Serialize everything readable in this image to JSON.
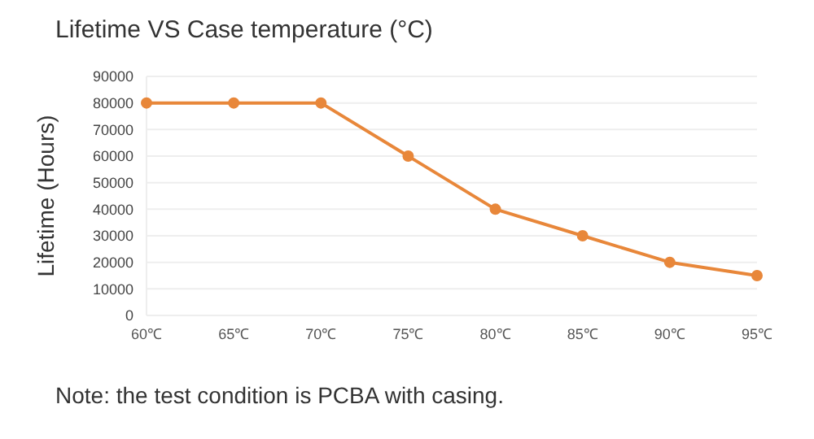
{
  "chart_data": {
    "type": "line",
    "title": "Lifetime VS Case temperature (°C)",
    "ylabel": "Lifetime (Hours)",
    "categories": [
      "60℃",
      "65℃",
      "70℃",
      "75℃",
      "80℃",
      "85℃",
      "90℃",
      "95℃"
    ],
    "series": [
      {
        "color": "#e8873a",
        "values": [
          80000,
          80000,
          80000,
          60000,
          40000,
          30000,
          20000,
          15000
        ]
      }
    ],
    "ylim": [
      0,
      90000
    ],
    "yticks": [
      0,
      10000,
      20000,
      30000,
      40000,
      50000,
      60000,
      70000,
      80000,
      90000
    ],
    "grid": "y",
    "marker": "circle",
    "line_style": "solid",
    "legend": false,
    "annotations": [
      "Note: the test condition is PCBA with casing."
    ]
  }
}
